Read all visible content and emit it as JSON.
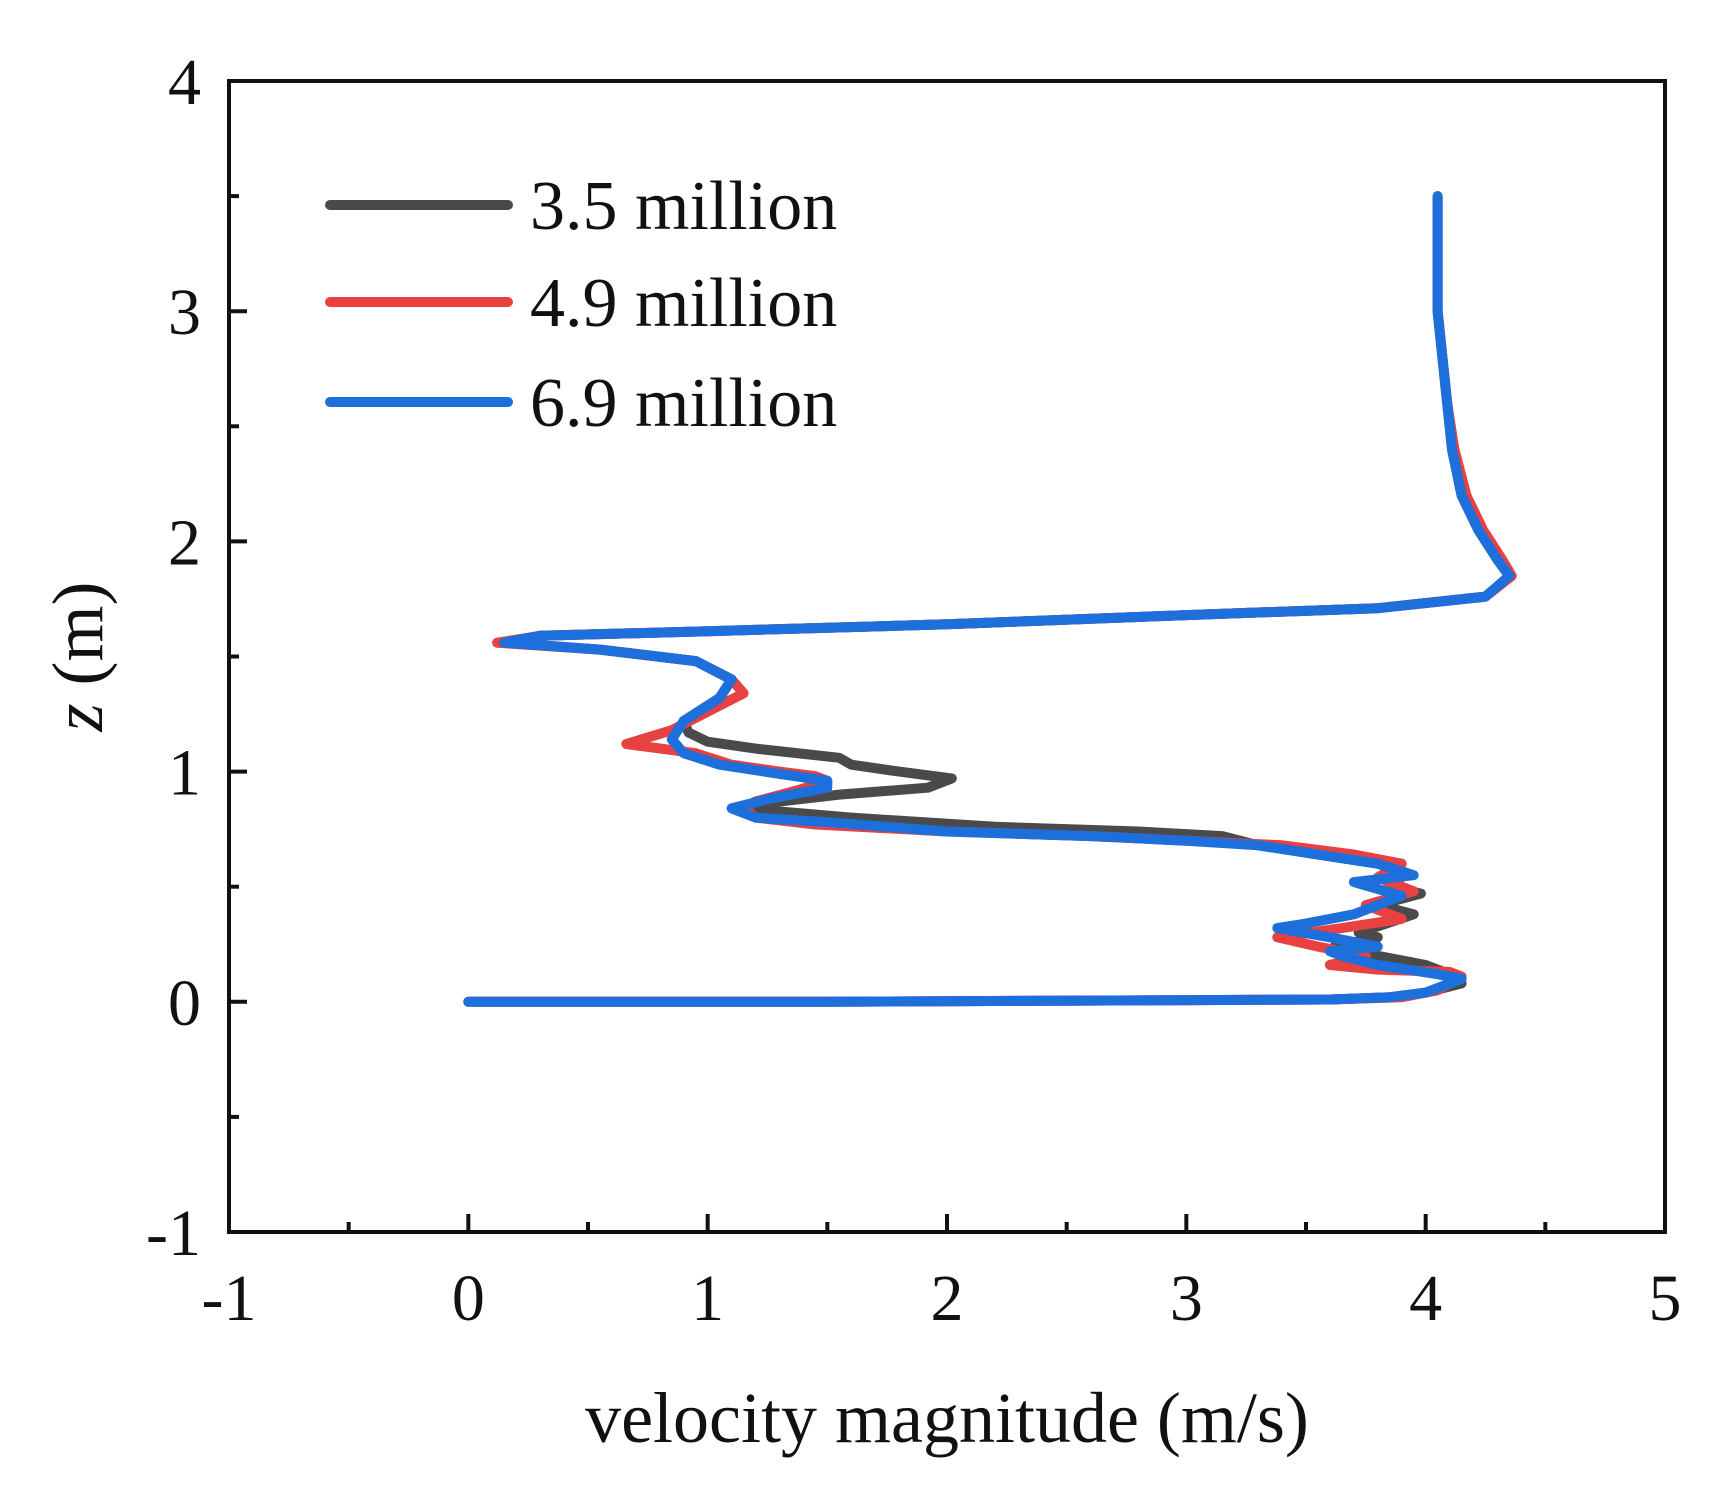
{
  "chart_data": {
    "type": "line",
    "title": "",
    "xlabel": "velocity magnitude (m/s)",
    "ylabel_var": "z",
    "ylabel_unit": " (m)",
    "xlim": [
      -1,
      5
    ],
    "ylim": [
      -1,
      4
    ],
    "x_ticks": [
      -1,
      0,
      1,
      2,
      3,
      4,
      5
    ],
    "y_ticks": [
      -1,
      0,
      1,
      2,
      3,
      4
    ],
    "x_tick_labels": [
      "-1",
      "0",
      "1",
      "2",
      "3",
      "4",
      "5"
    ],
    "y_tick_labels": [
      "-1",
      "0",
      "1",
      "2",
      "3",
      "4"
    ],
    "grid": false,
    "legend_position": "top-left",
    "series": [
      {
        "name": "3.5 million",
        "color": "#4a4a4a",
        "points": [
          [
            0.0,
            0.0
          ],
          [
            1.5,
            0.0
          ],
          [
            3.6,
            0.01
          ],
          [
            3.85,
            0.02
          ],
          [
            4.0,
            0.04
          ],
          [
            4.15,
            0.08
          ],
          [
            4.1,
            0.12
          ],
          [
            4.0,
            0.16
          ],
          [
            3.75,
            0.21
          ],
          [
            3.62,
            0.24
          ],
          [
            3.8,
            0.28
          ],
          [
            3.72,
            0.3
          ],
          [
            3.95,
            0.38
          ],
          [
            3.8,
            0.42
          ],
          [
            3.98,
            0.47
          ],
          [
            3.85,
            0.5
          ],
          [
            3.92,
            0.56
          ],
          [
            3.8,
            0.6
          ],
          [
            3.55,
            0.64
          ],
          [
            3.3,
            0.68
          ],
          [
            3.15,
            0.72
          ],
          [
            2.8,
            0.74
          ],
          [
            2.2,
            0.76
          ],
          [
            1.6,
            0.8
          ],
          [
            1.15,
            0.84
          ],
          [
            1.3,
            0.87
          ],
          [
            1.55,
            0.9
          ],
          [
            1.92,
            0.93
          ],
          [
            2.02,
            0.97
          ],
          [
            1.8,
            1.0
          ],
          [
            1.6,
            1.03
          ],
          [
            1.55,
            1.06
          ],
          [
            1.2,
            1.1
          ],
          [
            1.0,
            1.13
          ],
          [
            0.92,
            1.17
          ],
          [
            0.9,
            1.22
          ],
          [
            1.05,
            1.32
          ],
          [
            1.1,
            1.4
          ],
          [
            0.95,
            1.48
          ],
          [
            0.55,
            1.53
          ],
          [
            0.15,
            1.56
          ],
          [
            0.3,
            1.59
          ],
          [
            1.0,
            1.61
          ],
          [
            2.0,
            1.64
          ],
          [
            3.0,
            1.68
          ],
          [
            3.8,
            1.71
          ],
          [
            4.25,
            1.76
          ],
          [
            4.35,
            1.85
          ],
          [
            4.3,
            1.92
          ],
          [
            4.22,
            2.05
          ],
          [
            4.15,
            2.2
          ],
          [
            4.11,
            2.4
          ],
          [
            4.09,
            2.6
          ],
          [
            4.07,
            2.8
          ],
          [
            4.05,
            3.0
          ],
          [
            4.05,
            3.25
          ],
          [
            4.05,
            3.5
          ]
        ]
      },
      {
        "name": "4.9 million",
        "color": "#e84141",
        "points": [
          [
            0.0,
            0.0
          ],
          [
            1.5,
            0.0
          ],
          [
            3.6,
            0.01
          ],
          [
            3.9,
            0.02
          ],
          [
            4.05,
            0.05
          ],
          [
            4.15,
            0.11
          ],
          [
            4.1,
            0.13
          ],
          [
            3.8,
            0.14
          ],
          [
            3.6,
            0.16
          ],
          [
            3.75,
            0.2
          ],
          [
            3.55,
            0.24
          ],
          [
            3.38,
            0.28
          ],
          [
            3.65,
            0.32
          ],
          [
            3.9,
            0.36
          ],
          [
            3.75,
            0.42
          ],
          [
            3.95,
            0.48
          ],
          [
            3.8,
            0.54
          ],
          [
            3.9,
            0.6
          ],
          [
            3.7,
            0.64
          ],
          [
            3.4,
            0.68
          ],
          [
            3.0,
            0.7
          ],
          [
            2.6,
            0.72
          ],
          [
            2.0,
            0.74
          ],
          [
            1.45,
            0.77
          ],
          [
            1.2,
            0.8
          ],
          [
            1.15,
            0.84
          ],
          [
            1.2,
            0.87
          ],
          [
            1.38,
            0.92
          ],
          [
            1.5,
            0.96
          ],
          [
            1.45,
            0.98
          ],
          [
            1.3,
            1.0
          ],
          [
            1.1,
            1.03
          ],
          [
            0.95,
            1.08
          ],
          [
            0.66,
            1.12
          ],
          [
            0.85,
            1.18
          ],
          [
            1.0,
            1.26
          ],
          [
            1.15,
            1.34
          ],
          [
            1.1,
            1.4
          ],
          [
            0.95,
            1.48
          ],
          [
            0.55,
            1.53
          ],
          [
            0.12,
            1.56
          ],
          [
            0.3,
            1.59
          ],
          [
            1.0,
            1.61
          ],
          [
            2.0,
            1.64
          ],
          [
            3.0,
            1.68
          ],
          [
            3.8,
            1.71
          ],
          [
            4.25,
            1.76
          ],
          [
            4.36,
            1.85
          ],
          [
            4.32,
            1.92
          ],
          [
            4.24,
            2.05
          ],
          [
            4.17,
            2.2
          ],
          [
            4.12,
            2.4
          ],
          [
            4.09,
            2.6
          ],
          [
            4.07,
            2.8
          ],
          [
            4.05,
            3.0
          ],
          [
            4.05,
            3.25
          ],
          [
            4.05,
            3.5
          ]
        ]
      },
      {
        "name": "6.9 million",
        "color": "#1d6fdb",
        "points": [
          [
            0.0,
            0.0
          ],
          [
            1.5,
            0.0
          ],
          [
            3.6,
            0.01
          ],
          [
            3.85,
            0.02
          ],
          [
            4.0,
            0.04
          ],
          [
            4.15,
            0.1
          ],
          [
            4.05,
            0.12
          ],
          [
            3.8,
            0.16
          ],
          [
            3.65,
            0.2
          ],
          [
            3.6,
            0.22
          ],
          [
            3.8,
            0.24
          ],
          [
            3.6,
            0.28
          ],
          [
            3.38,
            0.32
          ],
          [
            3.5,
            0.34
          ],
          [
            3.7,
            0.38
          ],
          [
            3.9,
            0.46
          ],
          [
            3.7,
            0.52
          ],
          [
            3.95,
            0.55
          ],
          [
            3.8,
            0.6
          ],
          [
            3.55,
            0.64
          ],
          [
            3.3,
            0.68
          ],
          [
            3.0,
            0.7
          ],
          [
            2.6,
            0.72
          ],
          [
            2.0,
            0.74
          ],
          [
            1.5,
            0.78
          ],
          [
            1.2,
            0.8
          ],
          [
            1.1,
            0.84
          ],
          [
            1.25,
            0.88
          ],
          [
            1.5,
            0.93
          ],
          [
            1.5,
            0.96
          ],
          [
            1.3,
            0.99
          ],
          [
            1.05,
            1.03
          ],
          [
            0.9,
            1.08
          ],
          [
            0.85,
            1.14
          ],
          [
            0.9,
            1.22
          ],
          [
            1.05,
            1.32
          ],
          [
            1.1,
            1.4
          ],
          [
            0.95,
            1.48
          ],
          [
            0.55,
            1.53
          ],
          [
            0.15,
            1.56
          ],
          [
            0.3,
            1.59
          ],
          [
            1.0,
            1.61
          ],
          [
            2.0,
            1.64
          ],
          [
            3.0,
            1.68
          ],
          [
            3.8,
            1.71
          ],
          [
            4.25,
            1.76
          ],
          [
            4.35,
            1.85
          ],
          [
            4.3,
            1.92
          ],
          [
            4.22,
            2.05
          ],
          [
            4.15,
            2.2
          ],
          [
            4.11,
            2.4
          ],
          [
            4.09,
            2.6
          ],
          [
            4.07,
            2.8
          ],
          [
            4.05,
            3.0
          ],
          [
            4.05,
            3.25
          ],
          [
            4.05,
            3.5
          ]
        ]
      }
    ]
  }
}
